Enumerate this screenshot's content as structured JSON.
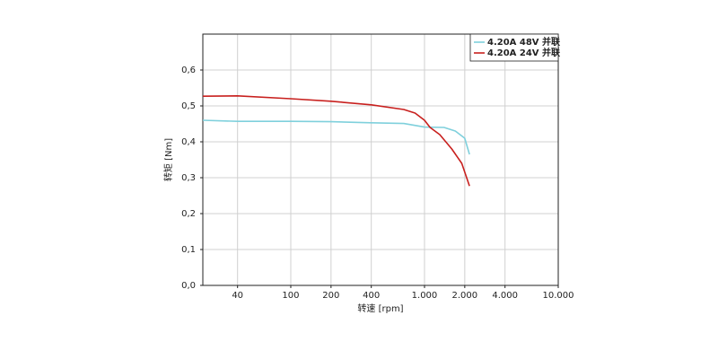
{
  "chart_data": {
    "type": "line",
    "x_label": "转速 [rpm]",
    "y_label": "转矩 [Nm]",
    "log_x": true,
    "grid": true,
    "legend": "upper right",
    "xlim": [
      22,
      10000
    ],
    "xticks": [
      40,
      100,
      200,
      400,
      {
        "value": 1000,
        "label": "1.000"
      },
      {
        "value": 2000,
        "label": "2.000"
      },
      {
        "value": 4000,
        "label": "4.000"
      },
      {
        "value": 10000,
        "label": "10.000"
      }
    ],
    "ylim": [
      0,
      0.7
    ],
    "yticks": [
      {
        "value": 0,
        "label": "0,0"
      },
      {
        "value": 0.1,
        "label": "0,1"
      },
      {
        "value": 0.2,
        "label": "0,2"
      },
      {
        "value": 0.3,
        "label": "0,3"
      },
      {
        "value": 0.4,
        "label": "0,4"
      },
      {
        "value": 0.5,
        "label": "0,5"
      },
      {
        "value": 0.6,
        "label": "0,6"
      }
    ],
    "series": [
      {
        "name": "4.20A 48V 并联",
        "color": "#7fd0dc",
        "x": [
          22,
          40,
          100,
          200,
          400,
          700,
          1000,
          1400,
          1700,
          2000,
          2170
        ],
        "values": [
          0.46,
          0.457,
          0.457,
          0.456,
          0.453,
          0.451,
          0.441,
          0.44,
          0.43,
          0.41,
          0.365
        ]
      },
      {
        "name": "4.20A 24V 并联",
        "color": "#c8201e",
        "x": [
          22,
          40,
          100,
          200,
          400,
          700,
          850,
          1000,
          1100,
          1300,
          1600,
          1900,
          2170
        ],
        "values": [
          0.527,
          0.528,
          0.52,
          0.513,
          0.503,
          0.49,
          0.48,
          0.46,
          0.44,
          0.42,
          0.38,
          0.34,
          0.277
        ]
      }
    ]
  }
}
